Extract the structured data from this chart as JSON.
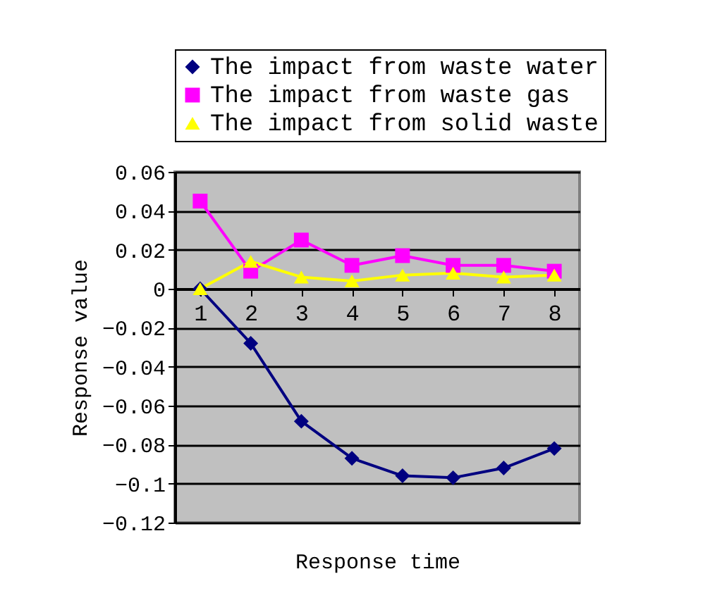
{
  "chart_data": {
    "type": "line",
    "xlabel": "Response time",
    "ylabel": "Response value",
    "categories": [
      "1",
      "2",
      "3",
      "4",
      "5",
      "6",
      "7",
      "8"
    ],
    "series": [
      {
        "name": "The impact from waste water",
        "color": "#000080",
        "marker": "diamond",
        "values": [
          0,
          -0.028,
          -0.068,
          -0.087,
          -0.096,
          -0.097,
          -0.092,
          -0.082
        ]
      },
      {
        "name": "The impact from waste gas",
        "color": "#ff00ff",
        "marker": "square",
        "values": [
          0.045,
          0.009,
          0.025,
          0.012,
          0.017,
          0.012,
          0.012,
          0.009
        ]
      },
      {
        "name": "The impact from solid waste",
        "color": "#ffff00",
        "marker": "triangle",
        "values": [
          0,
          0.014,
          0.006,
          0.004,
          0.007,
          0.008,
          0.006,
          0.007
        ]
      }
    ],
    "ylim": [
      -0.12,
      0.06
    ],
    "yticks": [
      {
        "value": 0.06,
        "label": "0.06"
      },
      {
        "value": 0.04,
        "label": "0.04"
      },
      {
        "value": 0.02,
        "label": "0.02"
      },
      {
        "value": 0,
        "label": "0"
      },
      {
        "value": -0.02,
        "label": "−0.02"
      },
      {
        "value": -0.04,
        "label": "−0.04"
      },
      {
        "value": -0.06,
        "label": "−0.06"
      },
      {
        "value": -0.08,
        "label": "−0.08"
      },
      {
        "value": -0.1,
        "label": "−0.1"
      },
      {
        "value": -0.12,
        "label": "−0.12"
      }
    ],
    "grid": "y",
    "legend": "top"
  }
}
